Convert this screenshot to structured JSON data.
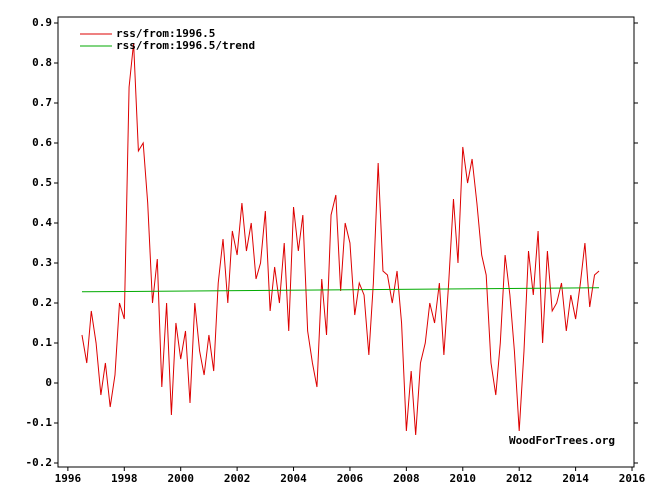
{
  "chart_data": {
    "type": "line",
    "annotation": "WoodForTrees.org",
    "legend": "top-left",
    "xlim": [
      1995.65,
      2016.07
    ],
    "ylim": [
      -0.21,
      0.915
    ],
    "xticks": [
      1996,
      1998,
      2000,
      2002,
      2004,
      2006,
      2008,
      2010,
      2012,
      2014,
      2016
    ],
    "yticks": [
      -0.2,
      -0.1,
      0,
      0.1,
      0.2,
      0.3,
      0.4,
      0.5,
      0.6,
      0.7,
      0.8,
      0.9
    ],
    "series": [
      {
        "name": "rss/from:1996.5",
        "color": "#dd0000",
        "x": [
          1996.5,
          1996.67,
          1996.83,
          1997.0,
          1997.17,
          1997.33,
          1997.5,
          1997.67,
          1997.83,
          1998.0,
          1998.17,
          1998.33,
          1998.5,
          1998.67,
          1998.83,
          1999.0,
          1999.17,
          1999.33,
          1999.5,
          1999.67,
          1999.83,
          2000.0,
          2000.17,
          2000.33,
          2000.5,
          2000.67,
          2000.83,
          2001.0,
          2001.17,
          2001.33,
          2001.5,
          2001.67,
          2001.83,
          2002.0,
          2002.17,
          2002.33,
          2002.5,
          2002.67,
          2002.83,
          2003.0,
          2003.17,
          2003.33,
          2003.5,
          2003.67,
          2003.83,
          2004.0,
          2004.17,
          2004.33,
          2004.5,
          2004.67,
          2004.83,
          2005.0,
          2005.17,
          2005.33,
          2005.5,
          2005.67,
          2005.83,
          2006.0,
          2006.17,
          2006.33,
          2006.5,
          2006.67,
          2006.83,
          2007.0,
          2007.17,
          2007.33,
          2007.5,
          2007.67,
          2007.83,
          2008.0,
          2008.17,
          2008.33,
          2008.5,
          2008.67,
          2008.83,
          2009.0,
          2009.17,
          2009.33,
          2009.5,
          2009.67,
          2009.83,
          2010.0,
          2010.17,
          2010.33,
          2010.5,
          2010.67,
          2010.83,
          2011.0,
          2011.17,
          2011.33,
          2011.5,
          2011.67,
          2011.83,
          2012.0,
          2012.17,
          2012.33,
          2012.5,
          2012.67,
          2012.83,
          2013.0,
          2013.17,
          2013.33,
          2013.5,
          2013.67,
          2013.83,
          2014.0,
          2014.17,
          2014.33,
          2014.5,
          2014.67,
          2014.83
        ],
        "values": [
          0.12,
          0.05,
          0.18,
          0.1,
          -0.03,
          0.05,
          -0.06,
          0.02,
          0.2,
          0.16,
          0.74,
          0.85,
          0.58,
          0.6,
          0.45,
          0.2,
          0.31,
          -0.01,
          0.2,
          -0.08,
          0.15,
          0.06,
          0.13,
          -0.05,
          0.2,
          0.08,
          0.02,
          0.12,
          0.03,
          0.25,
          0.36,
          0.2,
          0.38,
          0.32,
          0.45,
          0.33,
          0.4,
          0.26,
          0.3,
          0.43,
          0.18,
          0.29,
          0.2,
          0.35,
          0.13,
          0.44,
          0.33,
          0.42,
          0.13,
          0.05,
          -0.01,
          0.26,
          0.12,
          0.42,
          0.47,
          0.23,
          0.4,
          0.35,
          0.17,
          0.25,
          0.22,
          0.07,
          0.25,
          0.55,
          0.28,
          0.27,
          0.2,
          0.28,
          0.15,
          -0.12,
          0.03,
          -0.13,
          0.05,
          0.1,
          0.2,
          0.15,
          0.25,
          0.07,
          0.25,
          0.46,
          0.3,
          0.59,
          0.5,
          0.56,
          0.45,
          0.32,
          0.27,
          0.05,
          -0.03,
          0.1,
          0.32,
          0.22,
          0.08,
          -0.12,
          0.08,
          0.33,
          0.22,
          0.38,
          0.1,
          0.33,
          0.18,
          0.2,
          0.25,
          0.13,
          0.22,
          0.16,
          0.25,
          0.35,
          0.19,
          0.27,
          0.28
        ]
      },
      {
        "name": "rss/from:1996.5/trend",
        "color": "#00aa00",
        "x": [
          1996.5,
          2014.83
        ],
        "values": [
          0.228,
          0.238
        ]
      }
    ]
  }
}
